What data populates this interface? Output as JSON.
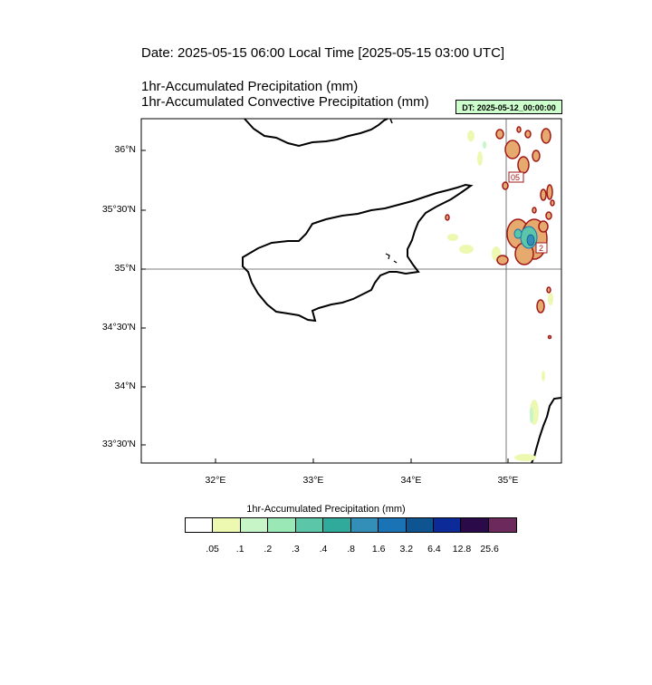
{
  "header": {
    "date_title": "Date: 2025-05-15  06:00 Local Time [2025-05-15  03:00 UTC]",
    "variable_line_1": "1hr-Accumulated Precipitation   (mm)",
    "variable_line_2": "1hr-Accumulated Convective Precipitation   (mm)",
    "dt_badge": "DT: 2025-05-12_00:00:00"
  },
  "map": {
    "region": "Cyprus / Eastern Mediterranean",
    "lat_labels": [
      "36°N",
      "35°30'N",
      "35°N",
      "34°30'N",
      "34°N",
      "33°30'N"
    ],
    "lon_labels": [
      "32°E",
      "33°E",
      "34°E",
      "35°E"
    ],
    "contour_labels": [
      "05",
      "2"
    ],
    "gridlines": "35°N and 35°E"
  },
  "colorbar": {
    "title": "1hr-Accumulated Precipitation  (mm)",
    "levels": [
      ".05",
      ".1",
      ".2",
      ".3",
      ".4",
      ".8",
      "1.6",
      "3.2",
      "6.4",
      "12.8",
      "25.6"
    ],
    "colors": [
      "#ffffff",
      "#edf8b1",
      "#c7f5c8",
      "#99e8b5",
      "#5cc6a8",
      "#30aa9b",
      "#348fb8",
      "#1a73b5",
      "#0e5490",
      "#0c2a98",
      "#2b0a4a",
      "#6b2a5b"
    ]
  },
  "style": {
    "coast_color": "#000000",
    "contour_color": "#a01818",
    "convective_fill": "#e6a96e"
  }
}
